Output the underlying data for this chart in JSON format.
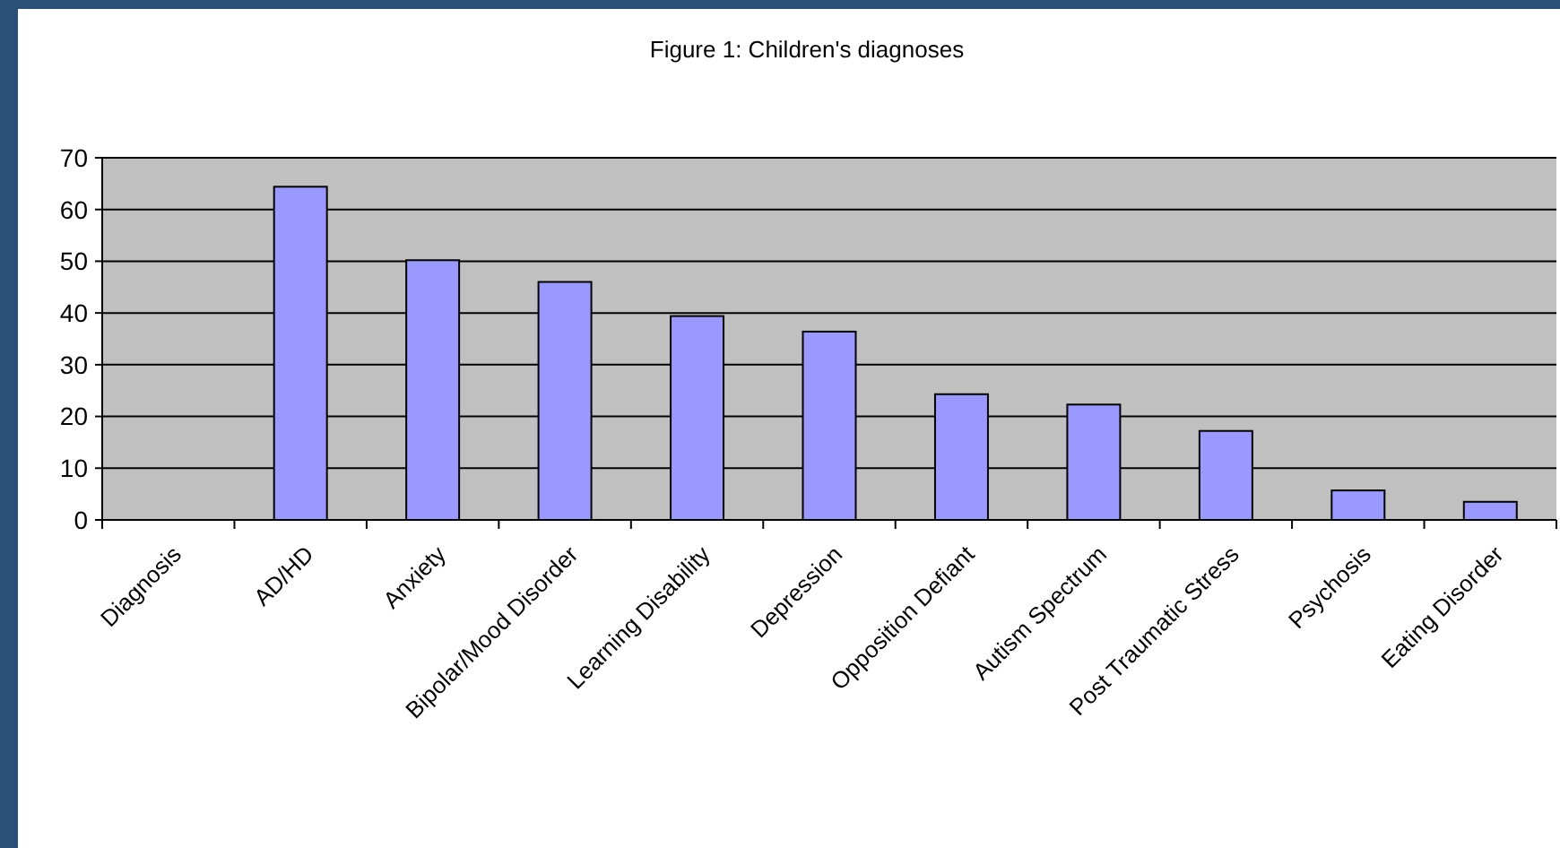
{
  "chart_data": {
    "type": "bar",
    "title": "Figure 1:  Children's diagnoses",
    "categories": [
      "Diagnosis",
      "AD/HD",
      "Anxiety",
      "Bipolar/Mood Disorder",
      "Learning Disability",
      "Depression",
      "Opposition Defiant",
      "Autism Spectrum",
      "Post Traumatic Stress",
      "Psychosis",
      "Eating Disorder"
    ],
    "values": [
      null,
      64.4,
      50.2,
      46,
      39.4,
      36.4,
      24.3,
      22.3,
      17.2,
      5.7,
      3.5
    ],
    "color": "#9999ff",
    "ylim": [
      0,
      70
    ],
    "yticks": [
      0,
      10,
      20,
      30,
      40,
      50,
      60,
      70
    ],
    "grid": "y"
  }
}
